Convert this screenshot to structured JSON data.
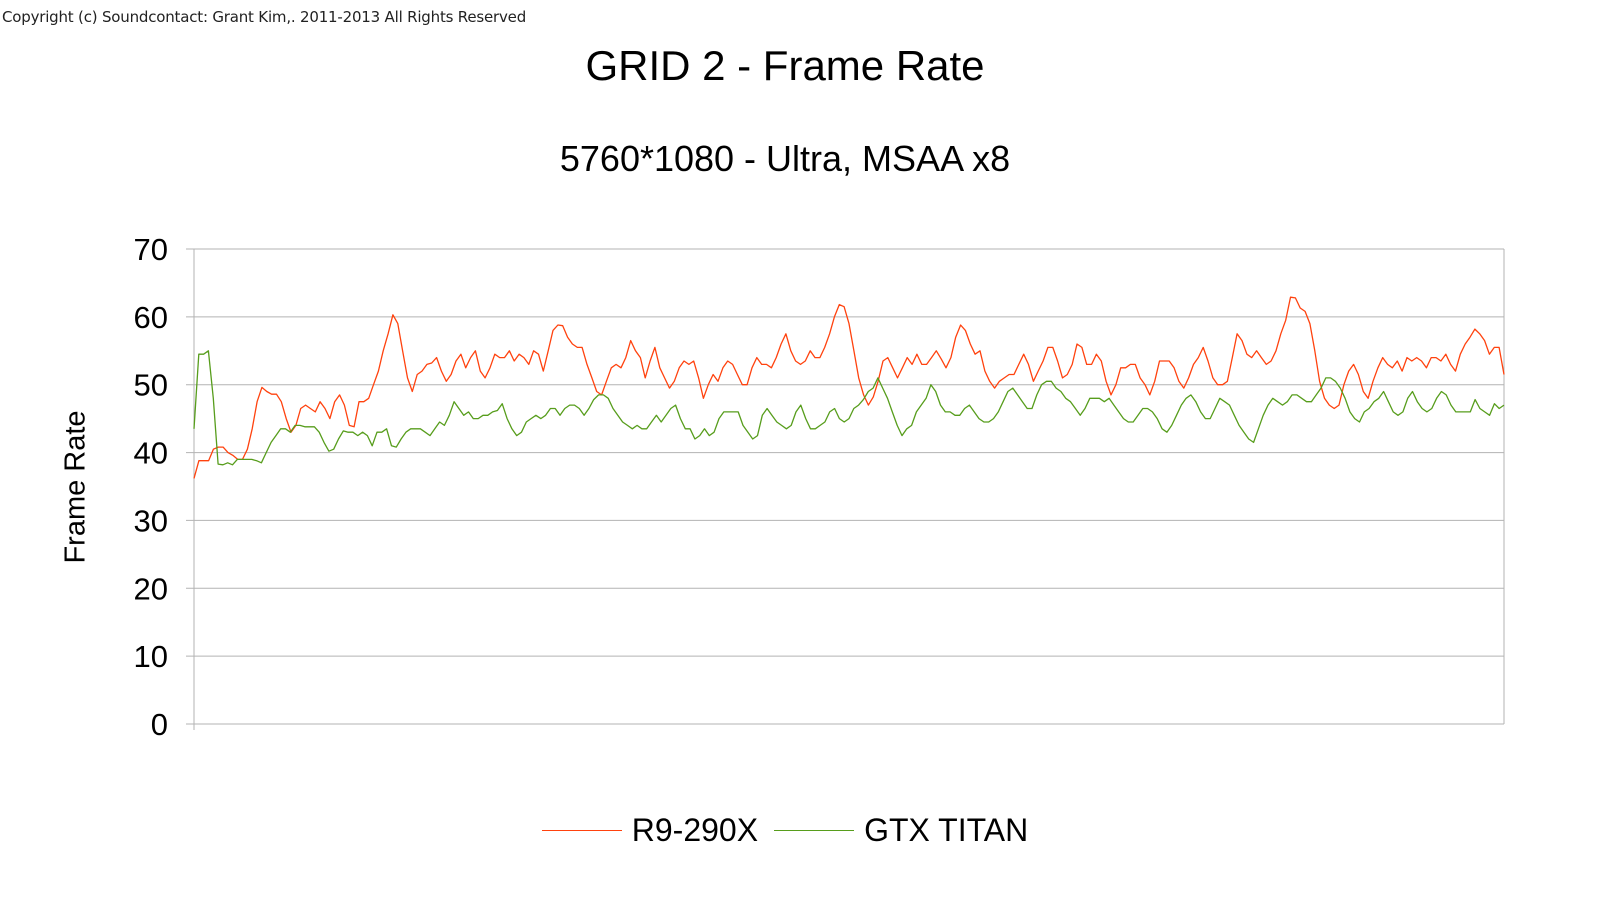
{
  "copyright": "Copyright (c) Soundcontact: Grant Kim,. 2011-2013 All Rights Reserved",
  "colors": {
    "r9": "#ff420e",
    "titan": "#579d1c",
    "grid": "#b3b3b3"
  },
  "chart_data": {
    "type": "line",
    "title": "GRID 2 - Frame Rate",
    "subtitle": "5760*1080 - Ultra, MSAA x8",
    "xlabel": "",
    "ylabel": "Frame Rate",
    "ylim": [
      0,
      70
    ],
    "yticks": [
      0,
      10,
      20,
      30,
      40,
      50,
      60,
      70
    ],
    "grid": true,
    "legend_position": "bottom",
    "series": [
      {
        "name": "R9-290X",
        "color": "#ff420e",
        "values": [
          36.2,
          38.8,
          38.8,
          38.8,
          40.5,
          40.8,
          40.8,
          40,
          39.6,
          39,
          39,
          40.5,
          43.5,
          47.5,
          49.6,
          49,
          48.6,
          48.6,
          47.5,
          45,
          43,
          44,
          46.5,
          47,
          46.5,
          46,
          47.5,
          46.5,
          45,
          47.5,
          48.5,
          47,
          44,
          43.8,
          47.5,
          47.5,
          48,
          50,
          52,
          55,
          57.5,
          60.3,
          59,
          55,
          51,
          49,
          51.5,
          52,
          53,
          53.2,
          54,
          52,
          50.5,
          51.5,
          53.5,
          54.5,
          52.5,
          54,
          55,
          52,
          51,
          52.5,
          54.5,
          54,
          54,
          55,
          53.5,
          54.5,
          54,
          53,
          55,
          54.5,
          52,
          55,
          58,
          58.8,
          58.7,
          57,
          56,
          55.5,
          55.5,
          53,
          51,
          49,
          48.5,
          50.5,
          52.5,
          53,
          52.5,
          54,
          56.5,
          55,
          54,
          51,
          53.5,
          55.5,
          52.5,
          51,
          49.5,
          50.5,
          52.5,
          53.5,
          53,
          53.5,
          51,
          48,
          50,
          51.5,
          50.5,
          52.5,
          53.5,
          53,
          51.5,
          50,
          50,
          52.5,
          54,
          53,
          53,
          52.5,
          54,
          56,
          57.5,
          55,
          53.5,
          53,
          53.5,
          55,
          54,
          54,
          55.5,
          57.5,
          60,
          61.8,
          61.5,
          59,
          55,
          51,
          48.5,
          47,
          48.2,
          50.5,
          53.5,
          54,
          52.5,
          51,
          52.5,
          54,
          53,
          54.5,
          53,
          53,
          54,
          55,
          53.8,
          52.5,
          54,
          57,
          58.8,
          58,
          56,
          54.5,
          55,
          52,
          50.5,
          49.5,
          50.5,
          51,
          51.5,
          51.5,
          53,
          54.5,
          53,
          50.5,
          52,
          53.5,
          55.5,
          55.5,
          53.5,
          51,
          51.5,
          53,
          56,
          55.5,
          53,
          53,
          54.5,
          53.5,
          50.5,
          48.5,
          50,
          52.5,
          52.5,
          53,
          53,
          51,
          50,
          48.5,
          50.5,
          53.5,
          53.5,
          53.5,
          52.5,
          50.5,
          49.5,
          51,
          53,
          54,
          55.5,
          53.5,
          51,
          50,
          50,
          50.5,
          54,
          57.5,
          56.5,
          54.5,
          54,
          55,
          54,
          53,
          53.5,
          55,
          57.5,
          59.5,
          62.9,
          62.8,
          61.3,
          60.8,
          59,
          55,
          50.5,
          48,
          47,
          46.5,
          47,
          50,
          52,
          53,
          51.5,
          49,
          48,
          50.5,
          52.5,
          54,
          53,
          52.5,
          53.5,
          52,
          54,
          53.5,
          54,
          53.5,
          52.5,
          54,
          54,
          53.5,
          54.5,
          53,
          52,
          54.5,
          56,
          57,
          58.2,
          57.5,
          56.5,
          54.5,
          55.5,
          55.5,
          51.5
        ]
      },
      {
        "name": "GTX TITAN",
        "color": "#579d1c",
        "values": [
          43.5,
          54.5,
          54.5,
          55,
          48,
          38.3,
          38.2,
          38.5,
          38.2,
          39,
          39,
          39,
          39,
          38.8,
          38.5,
          40,
          41.5,
          42.5,
          43.5,
          43.5,
          43,
          44,
          44,
          43.8,
          43.8,
          43.8,
          43,
          41.5,
          40.2,
          40.5,
          42,
          43.2,
          43,
          43,
          42.5,
          43,
          42.5,
          41,
          43,
          43,
          43.5,
          41,
          40.8,
          42,
          43,
          43.5,
          43.5,
          43.5,
          43,
          42.5,
          43.5,
          44.5,
          44,
          45.5,
          47.5,
          46.5,
          45.5,
          46,
          45,
          45,
          45.5,
          45.5,
          46,
          46.2,
          47.2,
          45,
          43.5,
          42.5,
          43,
          44.5,
          45,
          45.5,
          45,
          45.5,
          46.5,
          46.5,
          45.5,
          46.5,
          47,
          47,
          46.5,
          45.5,
          46.5,
          47.8,
          48.5,
          48.5,
          48,
          46.5,
          45.5,
          44.5,
          44,
          43.5,
          44,
          43.5,
          43.5,
          44.5,
          45.5,
          44.5,
          45.5,
          46.5,
          47,
          45,
          43.5,
          43.5,
          42,
          42.5,
          43.5,
          42.5,
          43,
          45,
          46,
          46,
          46,
          46,
          44,
          43,
          42,
          42.5,
          45.5,
          46.5,
          45.5,
          44.5,
          44,
          43.5,
          44,
          46,
          47,
          45,
          43.5,
          43.5,
          44,
          44.5,
          46,
          46.5,
          45,
          44.5,
          45,
          46.5,
          47,
          47.8,
          49,
          49.5,
          51,
          49.5,
          48,
          46,
          44,
          42.5,
          43.5,
          44,
          46,
          47,
          48,
          50,
          49,
          47,
          46,
          46,
          45.5,
          45.5,
          46.5,
          47,
          46,
          45,
          44.5,
          44.5,
          45,
          46,
          47.5,
          49,
          49.5,
          48.5,
          47.5,
          46.5,
          46.5,
          48.5,
          50,
          50.5,
          50.5,
          49.5,
          49,
          48,
          47.5,
          46.5,
          45.5,
          46.5,
          48,
          48,
          48,
          47.5,
          48,
          47,
          46,
          45,
          44.5,
          44.5,
          45.5,
          46.5,
          46.5,
          46,
          45,
          43.5,
          43,
          44,
          45.5,
          47,
          48,
          48.5,
          47.5,
          46,
          45,
          45,
          46.5,
          48,
          47.5,
          47,
          45.5,
          44,
          43,
          42,
          41.5,
          43.5,
          45.5,
          47,
          48,
          47.5,
          47,
          47.5,
          48.5,
          48.5,
          48,
          47.5,
          47.5,
          48.5,
          49.5,
          51,
          51,
          50.5,
          49.5,
          48,
          46,
          45,
          44.5,
          46,
          46.5,
          47.5,
          48,
          49,
          47.5,
          46,
          45.5,
          46,
          48,
          49,
          47.5,
          46.5,
          46,
          46.5,
          48,
          49,
          48.5,
          47,
          46,
          46,
          46,
          46,
          47.8,
          46.5,
          46,
          45.5,
          47.2,
          46.5,
          47
        ]
      }
    ]
  },
  "legend": {
    "items": [
      "R9-290X",
      "GTX TITAN"
    ]
  }
}
